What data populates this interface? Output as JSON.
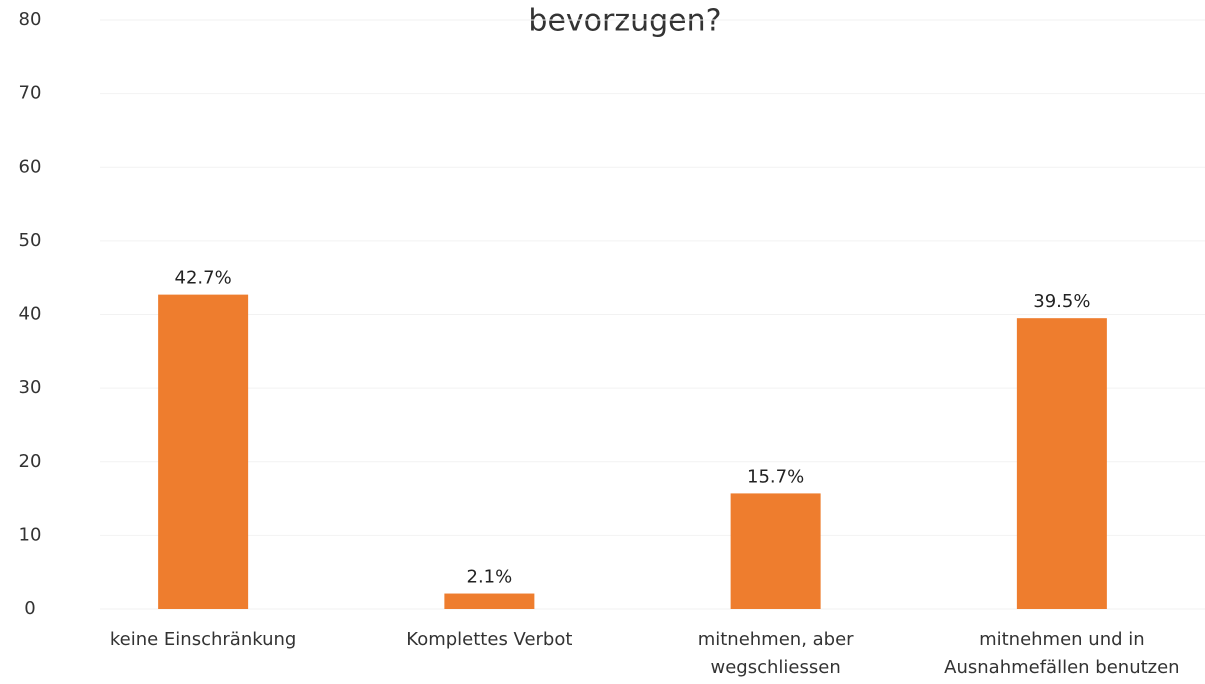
{
  "chart_data": {
    "type": "bar",
    "title": "bevorzugen?",
    "categories": [
      [
        "keine Einschränkung"
      ],
      [
        "Komplettes Verbot"
      ],
      [
        "mitnehmen, aber",
        "wegschliessen"
      ],
      [
        "mitnehmen und in",
        "Ausnahmefällen benutzen"
      ]
    ],
    "values": [
      42.7,
      2.1,
      15.7,
      39.5
    ],
    "value_labels": [
      "42.7%",
      "2.1%",
      "15.7%",
      "39.5%"
    ],
    "color": "#ee7d2e",
    "ylim": [
      0,
      80
    ],
    "yticks": [
      0,
      10,
      20,
      30,
      40,
      50,
      60,
      70,
      80
    ],
    "grid": true
  }
}
